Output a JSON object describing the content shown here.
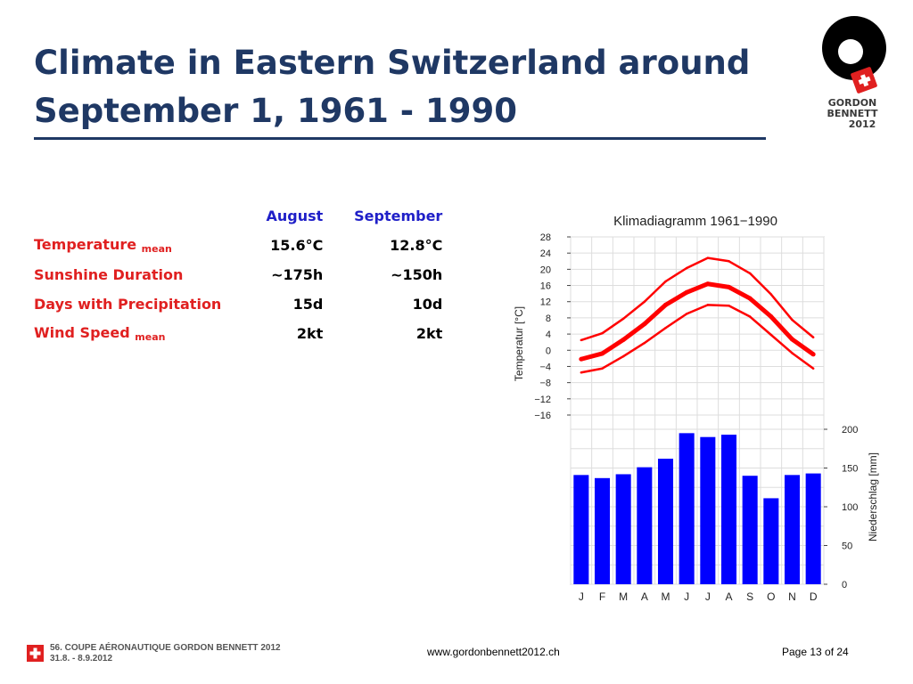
{
  "slide": {
    "title_line1": "Climate in Eastern Switzerland around",
    "title_line2": "September 1, 1961 - 1990"
  },
  "logo": {
    "line1": "GORDON",
    "line2": "BENNETT",
    "line3": "2012"
  },
  "table": {
    "headers": [
      "August",
      "September"
    ],
    "rows": [
      {
        "label": "Temperature",
        "sub": "mean",
        "august": "15.6°C",
        "september": "12.8°C"
      },
      {
        "label": "Sunshine Duration",
        "sub": "",
        "august": "~175h",
        "september": "~150h"
      },
      {
        "label": "Days with Precipitation",
        "sub": "",
        "august": "15d",
        "september": "10d"
      },
      {
        "label": "Wind Speed",
        "sub": "mean",
        "august": "2kt",
        "september": "2kt"
      }
    ]
  },
  "chart_data": {
    "type": "bar",
    "title": "Klimadiagramm 1961−1990",
    "categories": [
      "J",
      "F",
      "M",
      "A",
      "M",
      "J",
      "J",
      "A",
      "S",
      "O",
      "N",
      "D"
    ],
    "ylabel_left": "Temperatur [°C]",
    "ylabel_right": "Niederschlag [mm]",
    "temp_ticks": [
      "28",
      "24",
      "20",
      "16",
      "12",
      "8",
      "4",
      "0",
      "−4",
      "−8",
      "−12",
      "−16"
    ],
    "precip_ticks": [
      "200",
      "150",
      "100",
      "50",
      "0"
    ],
    "temp_ylim": [
      -16,
      28
    ],
    "precip_ylim": [
      0,
      200
    ],
    "grid": true,
    "series": [
      {
        "type": "line",
        "values": [
          2.5,
          4.2,
          7.8,
          12.0,
          17.0,
          20.3,
          22.8,
          22.0,
          19.0,
          13.8,
          7.5,
          3.2
        ]
      },
      {
        "type": "line",
        "values": [
          -2.2,
          -0.8,
          2.6,
          6.5,
          11.2,
          14.3,
          16.4,
          15.6,
          12.8,
          8.3,
          2.7,
          -1.0
        ]
      },
      {
        "type": "line",
        "values": [
          -5.5,
          -4.5,
          -1.5,
          1.8,
          5.5,
          9.0,
          11.2,
          11.0,
          8.3,
          3.8,
          -0.7,
          -4.5
        ]
      },
      {
        "type": "bar",
        "values": [
          141,
          137,
          142,
          151,
          162,
          195,
          190,
          193,
          140,
          111,
          141,
          143
        ]
      }
    ],
    "colors": {
      "bars": "#0000ff",
      "lines": "#ff0000",
      "grid": "#dddddd"
    }
  },
  "footer": {
    "event_line1": "56. COUPE AÉRONAUTIQUE GORDON BENNETT 2012",
    "event_line2": "31.8. - 8.9.2012",
    "url": "www.gordonbennett2012.ch",
    "page": "Page 13 of 24"
  }
}
